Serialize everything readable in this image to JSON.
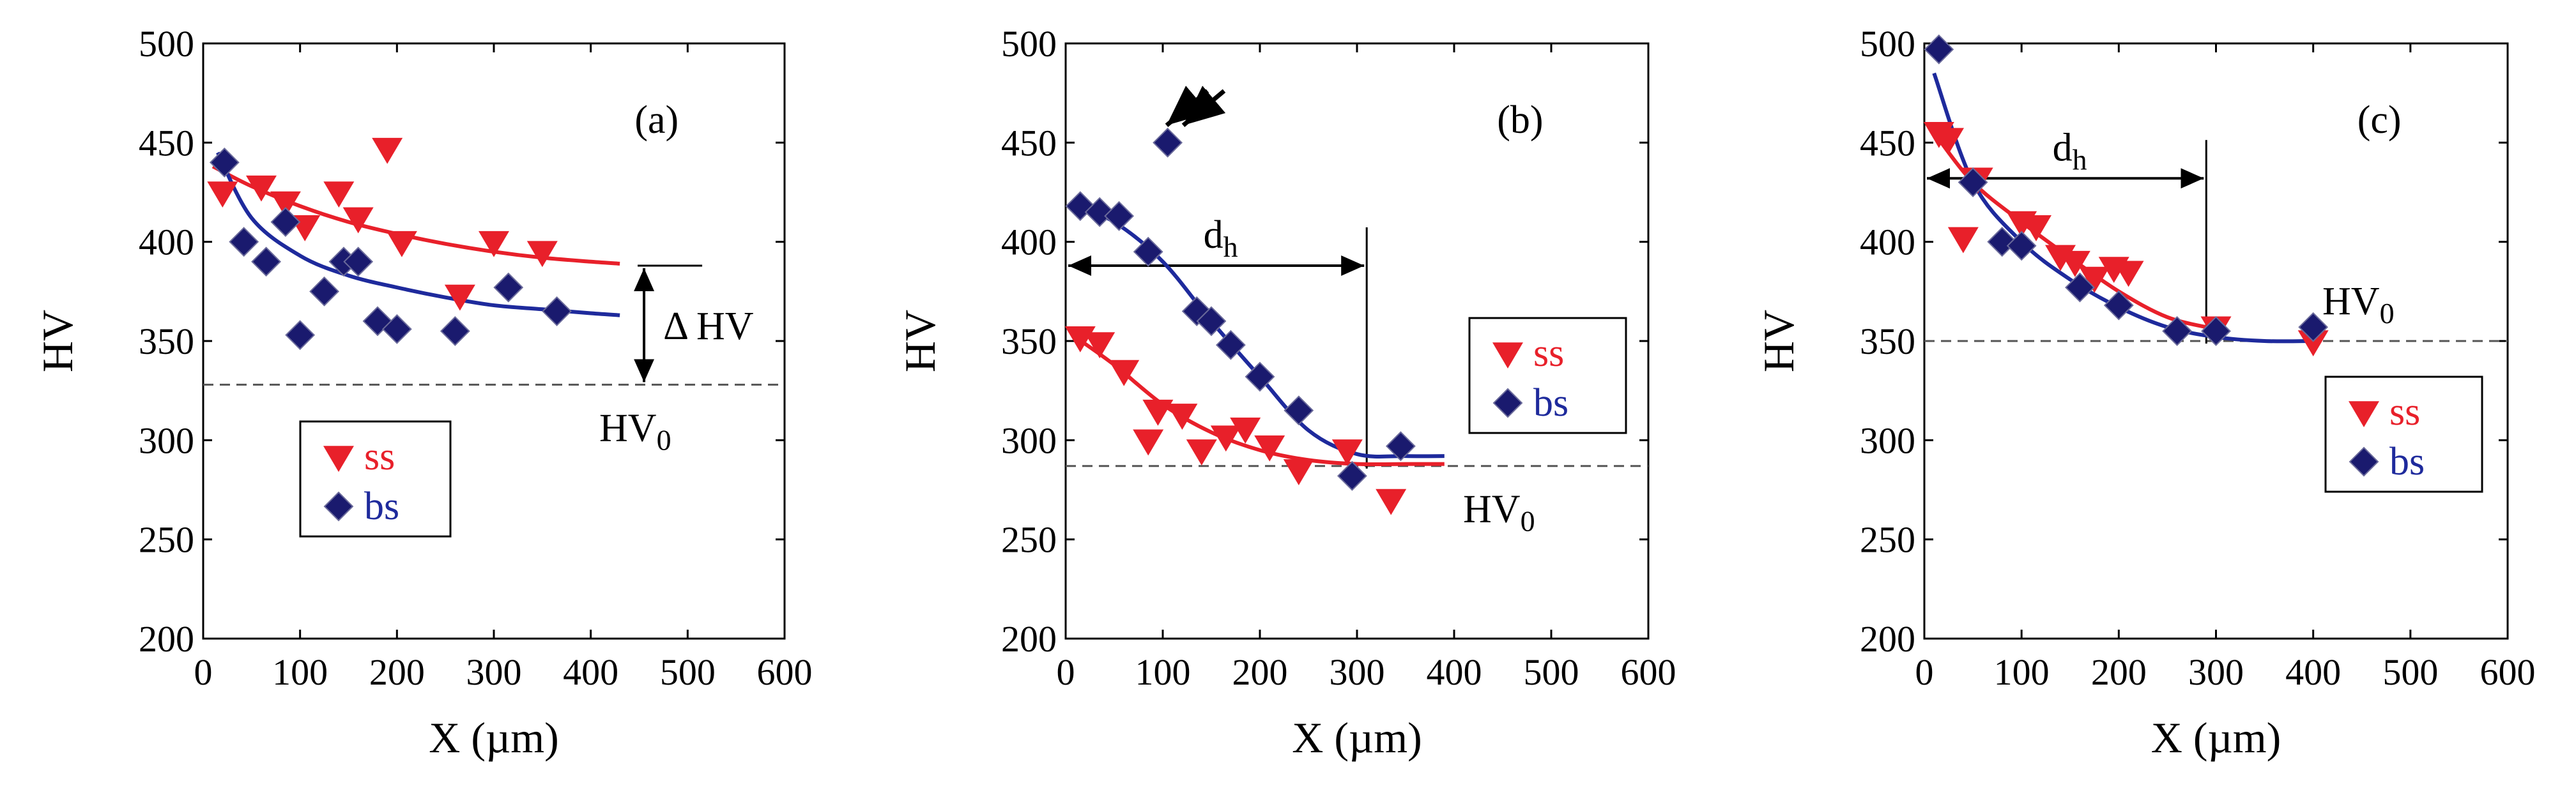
{
  "chart_data": [
    {
      "type": "scatter",
      "panel_label": "(a)",
      "xlabel": "X (µm)",
      "ylabel": "HV",
      "xlim": [
        0,
        600
      ],
      "ylim": [
        200,
        500
      ],
      "x_ticks": [
        "0",
        "100",
        "200",
        "300",
        "400",
        "500",
        "600"
      ],
      "y_ticks": [
        "200",
        "250",
        "300",
        "350",
        "400",
        "450",
        "500"
      ],
      "baseline": {
        "value": 328,
        "label": "HV",
        "label_sub": "0",
        "style": "dashed"
      },
      "legend_position": "lower-left",
      "series": [
        {
          "name": "ss",
          "marker": "triangle-down",
          "color": "#e8202a",
          "x": [
            20,
            60,
            85,
            105,
            140,
            160,
            190,
            205,
            265,
            300,
            350
          ],
          "y": [
            425,
            428,
            420,
            408,
            425,
            412,
            447,
            400,
            373,
            400,
            395
          ],
          "fit": {
            "x": [
              10,
              50,
              100,
              150,
              200,
              250,
              300,
              350,
              400,
              430
            ],
            "y": [
              438,
              428,
              418,
              410,
              404,
              399,
              395,
              392,
              390,
              389
            ]
          }
        },
        {
          "name": "bs",
          "marker": "diamond",
          "color": "#1a1a6e",
          "x": [
            22,
            42,
            65,
            85,
            100,
            125,
            145,
            160,
            180,
            200,
            260,
            315,
            365
          ],
          "y": [
            440,
            400,
            390,
            410,
            353,
            375,
            390,
            390,
            360,
            356,
            355,
            377,
            365
          ],
          "fit": {
            "x": [
              15,
              50,
              100,
              150,
              200,
              250,
              300,
              350,
              400,
              430
            ],
            "y": [
              445,
              412,
              393,
              383,
              377,
              372,
              368,
              366,
              364,
              363
            ]
          }
        }
      ],
      "annotations": [
        {
          "type": "delta_arrow",
          "label": "Δ HV",
          "x": 455,
          "from": 328,
          "to": 388
        }
      ]
    },
    {
      "type": "scatter",
      "panel_label": "(b)",
      "xlabel": "X (µm)",
      "ylabel": "HV",
      "xlim": [
        0,
        600
      ],
      "ylim": [
        200,
        500
      ],
      "x_ticks": [
        "0",
        "100",
        "200",
        "300",
        "400",
        "500",
        "600"
      ],
      "y_ticks": [
        "200",
        "250",
        "300",
        "350",
        "400",
        "450",
        "500"
      ],
      "baseline": {
        "value": 287,
        "label": "HV",
        "label_sub": "0",
        "style": "dashed"
      },
      "legend_position": "right",
      "series": [
        {
          "name": "ss",
          "marker": "triangle-down",
          "color": "#e8202a",
          "x": [
            15,
            35,
            60,
            85,
            95,
            120,
            140,
            165,
            185,
            210,
            240,
            290,
            335
          ],
          "y": [
            352,
            349,
            335,
            300,
            315,
            313,
            295,
            302,
            306,
            297,
            285,
            295,
            270
          ],
          "fit": {
            "x": [
              10,
              50,
              100,
              150,
              200,
              250,
              300,
              350,
              390
            ],
            "y": [
              352,
              338,
              318,
              304,
              295,
              290,
              288,
              288,
              288
            ]
          }
        },
        {
          "name": "bs",
          "marker": "diamond",
          "color": "#1a1a6e",
          "x": [
            15,
            35,
            55,
            85,
            105,
            135,
            150,
            170,
            200,
            240,
            295,
            345
          ],
          "y": [
            418,
            415,
            413,
            395,
            450,
            365,
            360,
            348,
            332,
            315,
            282,
            297
          ],
          "fit": {
            "x": [
              10,
              50,
              100,
              150,
              200,
              250,
              300,
              350,
              390
            ],
            "y": [
              418,
              410,
              390,
              360,
              332,
              305,
              293,
              292,
              292
            ]
          }
        }
      ],
      "annotations": [
        {
          "type": "arrow_pair",
          "label": "d",
          "label_sub": "h",
          "x_from": 0,
          "x_to": 310,
          "y": 388
        },
        {
          "type": "double_arrow_marker",
          "x": 100,
          "y": 460
        }
      ]
    },
    {
      "type": "scatter",
      "panel_label": "(c)",
      "xlabel": "X (µm)",
      "ylabel": "HV",
      "xlim": [
        0,
        600
      ],
      "ylim": [
        200,
        500
      ],
      "x_ticks": [
        "0",
        "100",
        "200",
        "300",
        "400",
        "500",
        "600"
      ],
      "y_ticks": [
        "200",
        "250",
        "300",
        "350",
        "400",
        "450",
        "500"
      ],
      "baseline": {
        "value": 350,
        "label": "HV",
        "label_sub": "0",
        "style": "dashed"
      },
      "legend_position": "right",
      "series": [
        {
          "name": "ss",
          "marker": "triangle-down",
          "color": "#e8202a",
          "x": [
            15,
            25,
            40,
            55,
            100,
            115,
            140,
            155,
            175,
            195,
            210,
            300,
            400
          ],
          "y": [
            455,
            452,
            402,
            432,
            410,
            408,
            393,
            390,
            382,
            387,
            385,
            357,
            350
          ],
          "fit": {
            "x": [
              10,
              50,
              100,
              150,
              200,
              250,
              300
            ],
            "y": [
              455,
              430,
              410,
              392,
              375,
              362,
              356
            ]
          }
        },
        {
          "name": "bs",
          "marker": "diamond",
          "color": "#1a1a6e",
          "x": [
            15,
            50,
            80,
            100,
            160,
            200,
            260,
            300,
            400
          ],
          "y": [
            497,
            430,
            400,
            398,
            377,
            368,
            355,
            355,
            357
          ],
          "fit": {
            "x": [
              10,
              50,
              100,
              150,
              200,
              250,
              300,
              350,
              400
            ],
            "y": [
              485,
              430,
              400,
              381,
              367,
              357,
              352,
              350,
              350
            ]
          }
        }
      ],
      "annotations": [
        {
          "type": "arrow_pair",
          "label": "d",
          "label_sub": "h",
          "x_from": 0,
          "x_to": 290,
          "y": 432
        }
      ]
    }
  ]
}
